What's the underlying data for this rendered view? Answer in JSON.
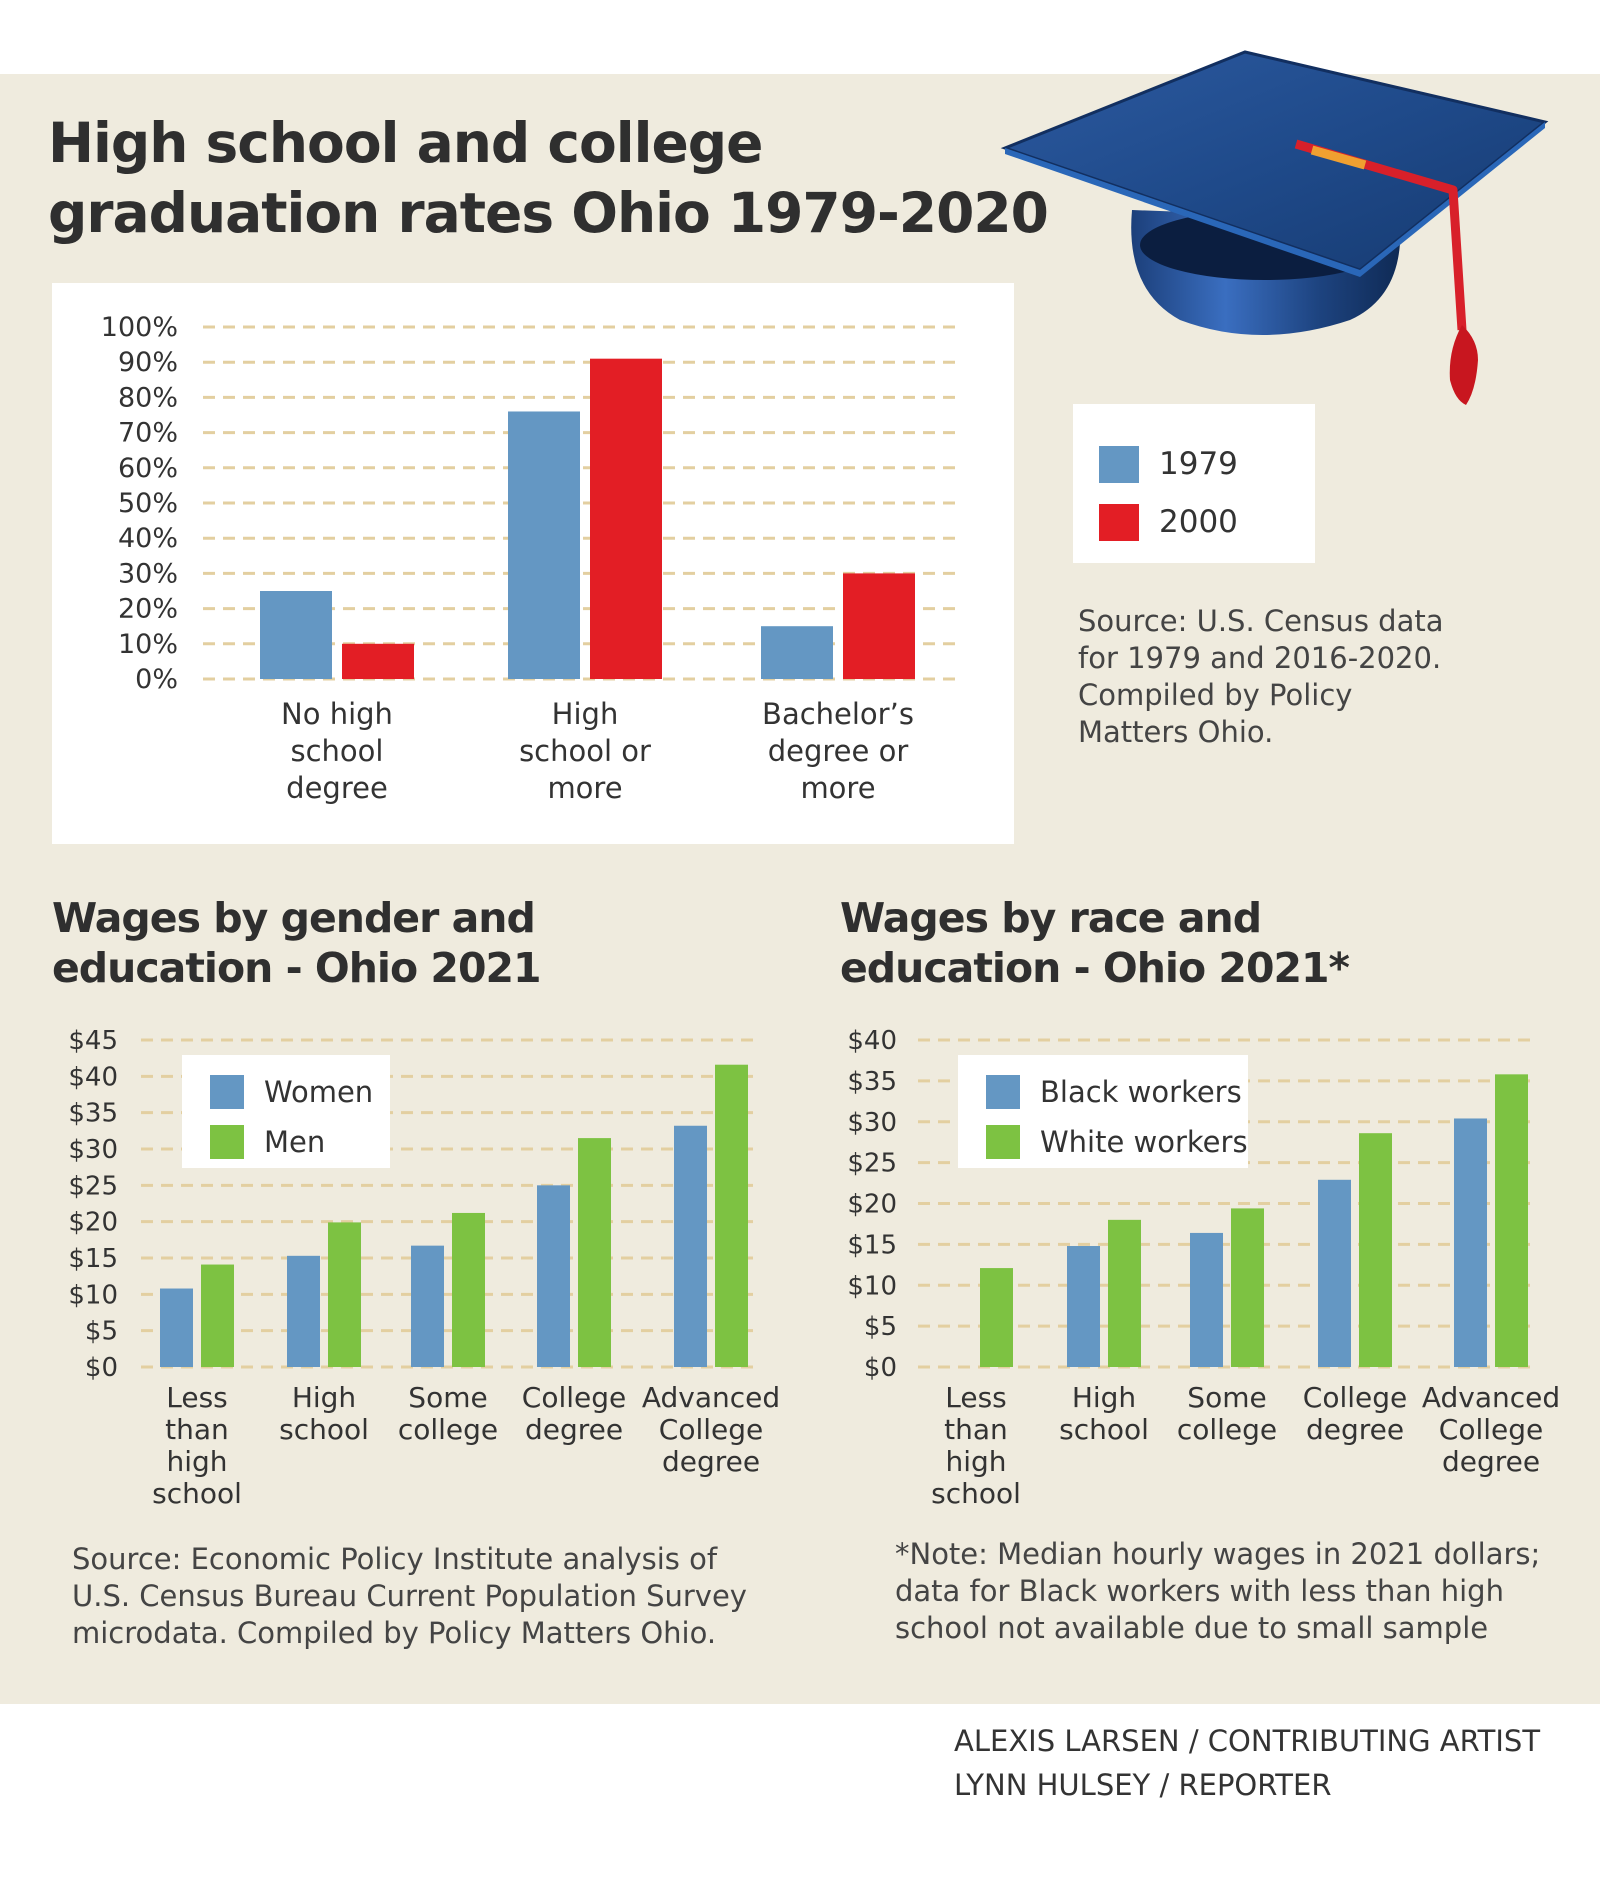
{
  "graduation": {
    "title": "High school and college graduation rates Ohio 1979-2020",
    "source": [
      "Source: U.S. Census data",
      "for 1979 and 2016-2020.",
      "Compiled by Policy",
      "Matters Ohio."
    ],
    "legend": [
      "1979",
      "2000"
    ]
  },
  "gender": {
    "title": "Wages by gender and education - Ohio 2021",
    "source": [
      "Source: Economic Policy Institute analysis of",
      "U.S. Census Bureau Current Population Survey",
      "microdata. Compiled by Policy Matters Ohio."
    ],
    "legend": [
      "Women",
      "Men"
    ]
  },
  "race": {
    "title": "Wages by race and education - Ohio 2021*",
    "note": [
      "*Note: Median hourly wages in 2021 dollars;",
      "data for Black workers with less than high",
      "school not available due to small sample"
    ],
    "legend": [
      "Black workers",
      "White workers"
    ]
  },
  "credits": [
    "ALEXIS LARSEN / CONTRIBUTING ARTIST",
    "LYNN HULSEY / REPORTER"
  ],
  "colors": {
    "blue": "#6497c3",
    "red": "#e31e25",
    "green": "#7dc242",
    "grid": "#e3cfa0",
    "panel": "#efebde"
  },
  "icons": {
    "cap": "graduation-cap-icon"
  },
  "chart_data": [
    {
      "id": "graduation",
      "type": "bar",
      "categories": [
        [
          "No high",
          "school",
          "degree"
        ],
        [
          "High",
          "school or",
          "more"
        ],
        [
          "Bachelor’s",
          "degree or",
          "more"
        ]
      ],
      "series": [
        {
          "name": "1979",
          "color": "#6497c3",
          "values": [
            25,
            76,
            15
          ]
        },
        {
          "name": "2000",
          "color": "#e31e25",
          "values": [
            10,
            91,
            30
          ]
        }
      ],
      "yticks": [
        "0%",
        "10%",
        "20%",
        "30%",
        "40%",
        "50%",
        "60%",
        "70%",
        "80%",
        "90%",
        "100%"
      ],
      "ylim": [
        0,
        100
      ],
      "grid": true,
      "legend": "right"
    },
    {
      "id": "gender",
      "type": "bar",
      "categories": [
        [
          "Less",
          "than",
          "high",
          "school"
        ],
        [
          "High",
          "school"
        ],
        [
          "Some",
          "college"
        ],
        [
          "College",
          "degree"
        ],
        [
          "Advanced",
          "College",
          "degree"
        ]
      ],
      "series": [
        {
          "name": "Women",
          "color": "#6497c3",
          "values": [
            10.8,
            15.3,
            16.7,
            25,
            33.2
          ]
        },
        {
          "name": "Men",
          "color": "#7dc242",
          "values": [
            14.1,
            19.9,
            21.2,
            31.5,
            41.6
          ]
        }
      ],
      "yticks": [
        "$0",
        "$5",
        "$10",
        "$15",
        "$20",
        "$25",
        "$30",
        "$35",
        "$40",
        "$45"
      ],
      "ylim": [
        0,
        45
      ],
      "grid": true,
      "legend": "top-left"
    },
    {
      "id": "race",
      "type": "bar",
      "categories": [
        [
          "Less",
          "than",
          "high",
          "school"
        ],
        [
          "High",
          "school"
        ],
        [
          "Some",
          "college"
        ],
        [
          "College",
          "degree"
        ],
        [
          "Advanced",
          "College",
          "degree"
        ]
      ],
      "series": [
        {
          "name": "Black workers",
          "color": "#6497c3",
          "values": [
            null,
            14.8,
            16.4,
            22.9,
            30.4
          ]
        },
        {
          "name": "White workers",
          "color": "#7dc242",
          "values": [
            12.1,
            18,
            19.4,
            28.6,
            35.8
          ]
        }
      ],
      "yticks": [
        "$0",
        "$5",
        "$10",
        "$15",
        "$20",
        "$25",
        "$30",
        "$35",
        "$40"
      ],
      "ylim": [
        0,
        40
      ],
      "grid": true,
      "legend": "top-left"
    }
  ]
}
